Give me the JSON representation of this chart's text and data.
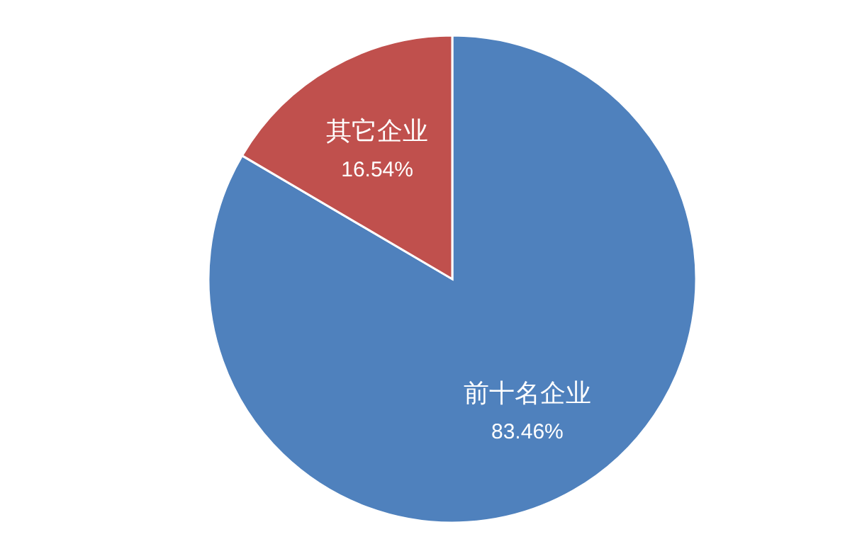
{
  "chart_data": {
    "type": "pie",
    "categories": [
      "前十名企业",
      "其它企业"
    ],
    "values": [
      83.46,
      16.54
    ],
    "colors": [
      "#4f81bd",
      "#c0504d"
    ],
    "value_labels": [
      "83.46%",
      "16.54%"
    ]
  }
}
